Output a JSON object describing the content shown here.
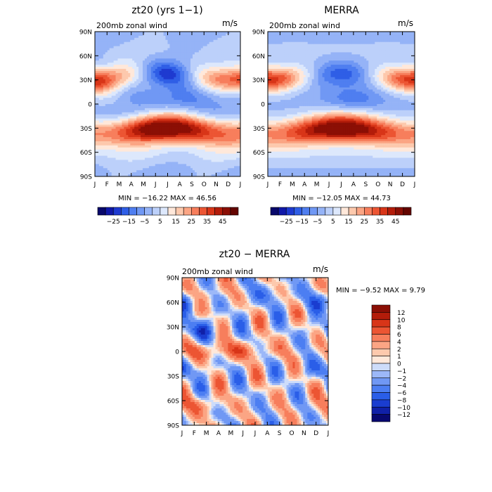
{
  "months": [
    "J",
    "F",
    "M",
    "A",
    "M",
    "J",
    "J",
    "A",
    "S",
    "O",
    "N",
    "D",
    "J"
  ],
  "lat_ticks": [
    "90N",
    "60N",
    "30N",
    "0",
    "30S",
    "60S",
    "90S"
  ],
  "chart_data": [
    {
      "type": "heatmap",
      "title": "zt20 (yrs 1−1)",
      "subtitle": "200mb zonal wind",
      "units": "m/s",
      "min_label": "MIN = −16.22 MAX =   46.56",
      "min": -16.22,
      "max": 46.56,
      "colorbar": {
        "orientation": "horizontal",
        "levels": [
          -30,
          -25,
          -20,
          -15,
          -10,
          -5,
          0,
          5,
          10,
          15,
          20,
          25,
          30,
          35,
          40,
          45
        ],
        "tick_labels": [
          "−25",
          "−15",
          "−5",
          "5",
          "15",
          "25",
          "35",
          "45"
        ],
        "colors": [
          "#08086b",
          "#1018a8",
          "#1e3ad0",
          "#2f5ee6",
          "#4f7ef0",
          "#7098f4",
          "#95b3f7",
          "#bcd0fa",
          "#dde8fc",
          "#ffe8da",
          "#fdc9ad",
          "#fba584",
          "#f77e5c",
          "#ec5533",
          "#d83518",
          "#b31c0a",
          "#8b0f05",
          "#640500"
        ]
      },
      "field": "model"
    },
    {
      "type": "heatmap",
      "title": "MERRA",
      "subtitle": "200mb zonal wind",
      "units": "m/s",
      "min_label": "MIN = −12.05 MAX =   44.73",
      "min": -12.05,
      "max": 44.73,
      "colorbar": {
        "orientation": "horizontal",
        "levels": [
          -30,
          -25,
          -20,
          -15,
          -10,
          -5,
          0,
          5,
          10,
          15,
          20,
          25,
          30,
          35,
          40,
          45
        ],
        "tick_labels": [
          "−25",
          "−15",
          "−5",
          "5",
          "15",
          "25",
          "35",
          "45"
        ],
        "colors": [
          "#08086b",
          "#1018a8",
          "#1e3ad0",
          "#2f5ee6",
          "#4f7ef0",
          "#7098f4",
          "#95b3f7",
          "#bcd0fa",
          "#dde8fc",
          "#ffe8da",
          "#fdc9ad",
          "#fba584",
          "#f77e5c",
          "#ec5533",
          "#d83518",
          "#b31c0a",
          "#8b0f05",
          "#640500"
        ]
      },
      "field": "obs"
    },
    {
      "type": "heatmap",
      "title": "zt20 − MERRA",
      "subtitle": "200mb zonal wind",
      "units": "m/s",
      "min_label": "MIN =   −9.52 MAX =    9.79",
      "min": -9.52,
      "max": 9.79,
      "colorbar": {
        "orientation": "vertical",
        "levels": [
          -12,
          -10,
          -8,
          -6,
          -4,
          -2,
          -1,
          0,
          1,
          2,
          4,
          6,
          8,
          10,
          12
        ],
        "tick_labels": [
          "12",
          "10",
          "8",
          "6",
          "4",
          "2",
          "1",
          "0",
          "−1",
          "−2",
          "−4",
          "−6",
          "−8",
          "−10",
          "−12"
        ],
        "colors": [
          "#080870",
          "#1020a8",
          "#1a3dd0",
          "#2a5ee8",
          "#4c7ef2",
          "#7098f4",
          "#9cb8f8",
          "#cddcfa",
          "#ffe8da",
          "#fdc9ad",
          "#fba584",
          "#f77e5c",
          "#ec5533",
          "#d83518",
          "#b31c0a",
          "#8b0f05"
        ]
      },
      "field": "diff"
    }
  ]
}
